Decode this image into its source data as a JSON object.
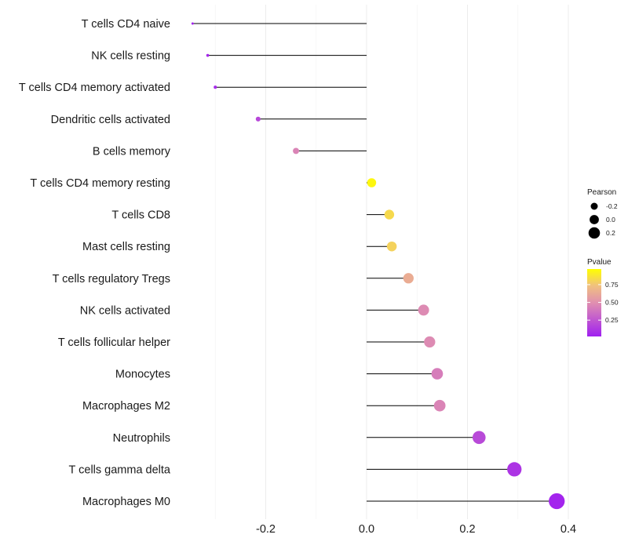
{
  "chart_data": {
    "type": "lollipop",
    "categories": [
      "T cells CD4 naive",
      "NK cells resting",
      "T cells CD4 memory activated",
      "Dendritic cells activated",
      "B cells memory",
      "T cells CD4 memory resting",
      "T cells CD8",
      "Mast cells resting",
      "T cells regulatory  Tregs ",
      "NK cells activated",
      "T cells follicular helper",
      "Monocytes",
      "Macrophages M2",
      "Neutrophils",
      "T cells gamma delta",
      "Macrophages M0"
    ],
    "values": [
      -0.345,
      -0.315,
      -0.3,
      -0.215,
      -0.14,
      0.01,
      0.045,
      0.05,
      0.083,
      0.113,
      0.125,
      0.14,
      0.145,
      0.223,
      0.293,
      0.377
    ],
    "pvalues": [
      0.02,
      0.04,
      0.05,
      0.18,
      0.45,
      0.97,
      0.85,
      0.82,
      0.65,
      0.48,
      0.48,
      0.42,
      0.45,
      0.19,
      0.09,
      0.02
    ],
    "xlim": [
      -0.345,
      0.4
    ],
    "xticks": [
      -0.2,
      0.0,
      0.2,
      0.4
    ],
    "xtick_labels": [
      "-0.2",
      "0.0",
      "0.2",
      "0.4"
    ],
    "title": "",
    "xlabel": "",
    "ylabel": "",
    "legend": {
      "size_title": "Pearson",
      "size_entries": [
        {
          "label": "-0.2",
          "value": -0.2
        },
        {
          "label": "0.0",
          "value": 0.0
        },
        {
          "label": "0.2",
          "value": 0.2
        }
      ],
      "color_title": "Pvalue",
      "color_ticks": [
        {
          "label": "0.75",
          "value": 0.75
        },
        {
          "label": "0.50",
          "value": 0.5
        },
        {
          "label": "0.25",
          "value": 0.25
        }
      ],
      "color_low": "#a020f0",
      "color_mid": "#e0a0a0",
      "color_high": "#ffff00"
    },
    "grid": true
  }
}
